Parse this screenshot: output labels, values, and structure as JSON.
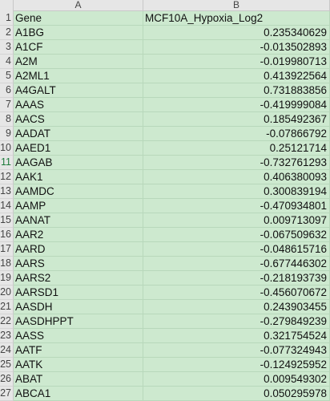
{
  "columns": [
    "A",
    "B"
  ],
  "rows": [
    {
      "num": "1",
      "a": "Gene",
      "b": "MCF10A_Hypoxia_Log2",
      "b_is_text": true
    },
    {
      "num": "2",
      "a": "A1BG",
      "b": "0.235340629"
    },
    {
      "num": "3",
      "a": "A1CF",
      "b": "-0.013502893"
    },
    {
      "num": "4",
      "a": "A2M",
      "b": "-0.019980713"
    },
    {
      "num": "5",
      "a": "A2ML1",
      "b": "0.413922564"
    },
    {
      "num": "6",
      "a": "A4GALT",
      "b": "0.731883856"
    },
    {
      "num": "7",
      "a": "AAAS",
      "b": "-0.419999084"
    },
    {
      "num": "8",
      "a": "AACS",
      "b": "0.185492367"
    },
    {
      "num": "9",
      "a": "AADAT",
      "b": "-0.07866792"
    },
    {
      "num": "10",
      "a": "AAED1",
      "b": "0.25121714"
    },
    {
      "num": "11",
      "a": "AAGAB",
      "b": "-0.732761293",
      "selected": true
    },
    {
      "num": "12",
      "a": "AAK1",
      "b": "0.406380093"
    },
    {
      "num": "13",
      "a": "AAMDC",
      "b": "0.300839194"
    },
    {
      "num": "14",
      "a": "AAMP",
      "b": "-0.470934801"
    },
    {
      "num": "15",
      "a": "AANAT",
      "b": "0.009713097"
    },
    {
      "num": "16",
      "a": "AAR2",
      "b": "-0.067509632"
    },
    {
      "num": "17",
      "a": "AARD",
      "b": "-0.048615716"
    },
    {
      "num": "18",
      "a": "AARS",
      "b": "-0.677446302"
    },
    {
      "num": "19",
      "a": "AARS2",
      "b": "-0.218193739"
    },
    {
      "num": "20",
      "a": "AARSD1",
      "b": "-0.456070672"
    },
    {
      "num": "21",
      "a": "AASDH",
      "b": "0.243903455"
    },
    {
      "num": "22",
      "a": "AASDHPPT",
      "b": "-0.279849239"
    },
    {
      "num": "23",
      "a": "AASS",
      "b": "0.321754524"
    },
    {
      "num": "24",
      "a": "AATF",
      "b": "-0.077324943"
    },
    {
      "num": "25",
      "a": "AATK",
      "b": "-0.124925952"
    },
    {
      "num": "26",
      "a": "ABAT",
      "b": "0.009549302"
    },
    {
      "num": "27",
      "a": "ABCA1",
      "b": "0.050295978"
    }
  ]
}
